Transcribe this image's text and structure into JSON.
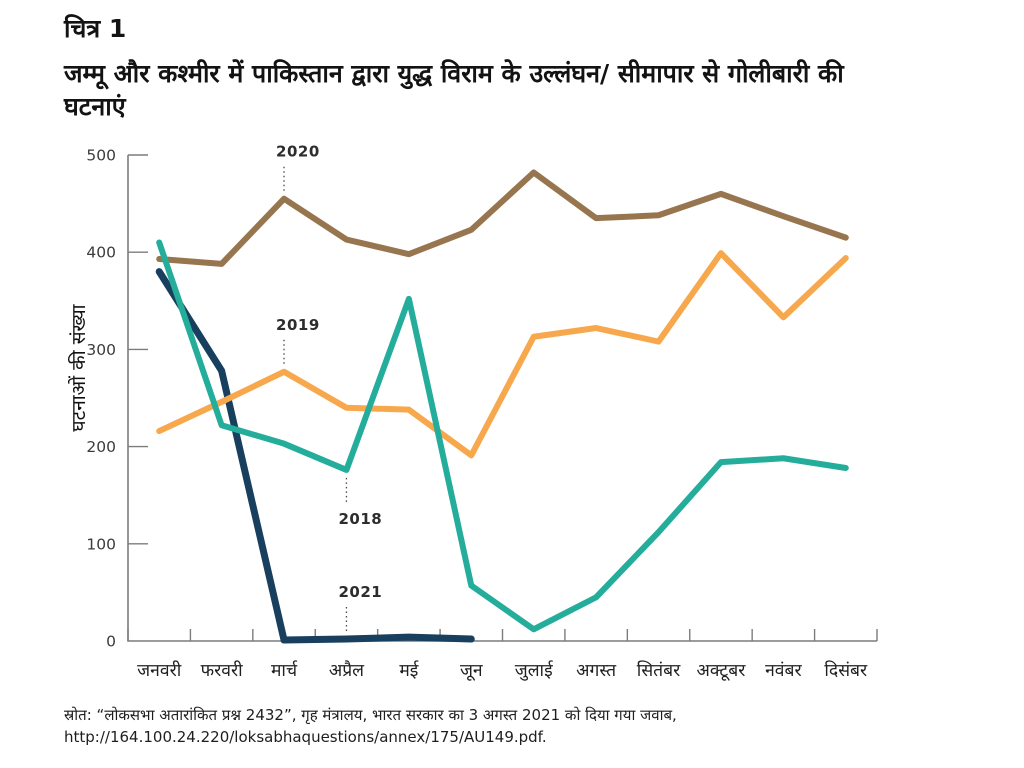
{
  "figure": {
    "label": "चित्र 1",
    "title_lines": [
      "जम्मू और कश्मीर में पाकिस्तान द्वारा युद्ध विराम के उल्लंघन/ सीमापार से गोलीबारी की",
      "घटनाएं"
    ]
  },
  "source": {
    "line1": "स्रोत: “लोकसभा अतारांकित प्रश्न 2432”, गृह मंत्रालय, भारत सरकार का 3 अगस्त 2021 को दिया गया जवाब,",
    "line2": "http://164.100.24.220/loksabhaquestions/annex/175/AU149.pdf."
  },
  "chart_data": {
    "type": "line",
    "title": "",
    "xlabel": "",
    "ylabel": "घटनाओं की संख्या",
    "ylim": [
      0,
      500
    ],
    "yticks": [
      0,
      100,
      200,
      300,
      400,
      500
    ],
    "grid": false,
    "legend_position": "inline-annotations",
    "axis_color": "#7c7c7c",
    "tick_label_color": "#3c3c3c",
    "month_label_color": "#1f1f1f",
    "annotation_color": "#2d2d2d",
    "categories": [
      "जनवरी",
      "फरवरी",
      "मार्च",
      "अप्रैल",
      "मई",
      "जून",
      "जुलाई",
      "अगस्त",
      "सितंबर",
      "अक्टूबर",
      "नवंबर",
      "दिसंबर"
    ],
    "series": [
      {
        "name": "2018",
        "color": "#25AD9C",
        "width": 6,
        "values": [
          410,
          222,
          203,
          176,
          352,
          57,
          12,
          45,
          112,
          184,
          188,
          178
        ]
      },
      {
        "name": "2019",
        "color": "#F8A84C",
        "width": 6,
        "values": [
          216,
          246,
          277,
          240,
          238,
          191,
          313,
          322,
          308,
          399,
          333,
          394
        ]
      },
      {
        "name": "2020",
        "color": "#97764F",
        "width": 6,
        "values": [
          393,
          388,
          455,
          413,
          398,
          423,
          482,
          435,
          438,
          460,
          437,
          415
        ]
      },
      {
        "name": "2021",
        "color": "#183F5E",
        "width": 7,
        "values": [
          380,
          278,
          1,
          2,
          4,
          2,
          null,
          null,
          null,
          null,
          null,
          null
        ]
      }
    ],
    "annotations": [
      {
        "text": "2020",
        "series": "2020",
        "month_index": 2,
        "side": "above"
      },
      {
        "text": "2019",
        "series": "2019",
        "month_index": 2,
        "side": "above"
      },
      {
        "text": "2018",
        "series": "2018",
        "month_index": 3,
        "side": "below"
      },
      {
        "text": "2021",
        "series": "2021",
        "month_index": 3,
        "side": "above"
      }
    ]
  }
}
